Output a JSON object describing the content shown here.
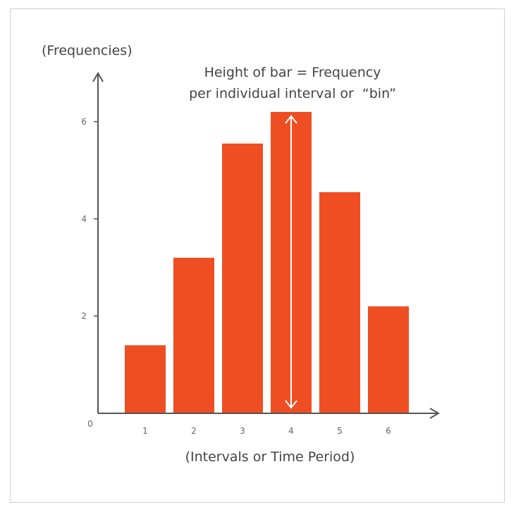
{
  "chart_data": {
    "type": "bar",
    "ylabel": "(Frequencies)",
    "xlabel": "(Intervals or Time Period)",
    "annotation": [
      "Height of bar = Frequency",
      "per individual interval or  “bin”"
    ],
    "categories": [
      "1",
      "2",
      "3",
      "4",
      "5",
      "6"
    ],
    "values": [
      1.4,
      3.2,
      5.55,
      6.2,
      4.55,
      2.2
    ],
    "ylim": [
      0,
      6.2
    ],
    "yticks": [
      "0",
      "2",
      "4",
      "6"
    ],
    "highlight_category": "4",
    "grid": false,
    "legend": "none",
    "colors": {
      "bar": "#ee4e22",
      "axis": "#555555",
      "arrow": "#ffffff",
      "text": "#444444",
      "tick_text": "#666666"
    }
  }
}
